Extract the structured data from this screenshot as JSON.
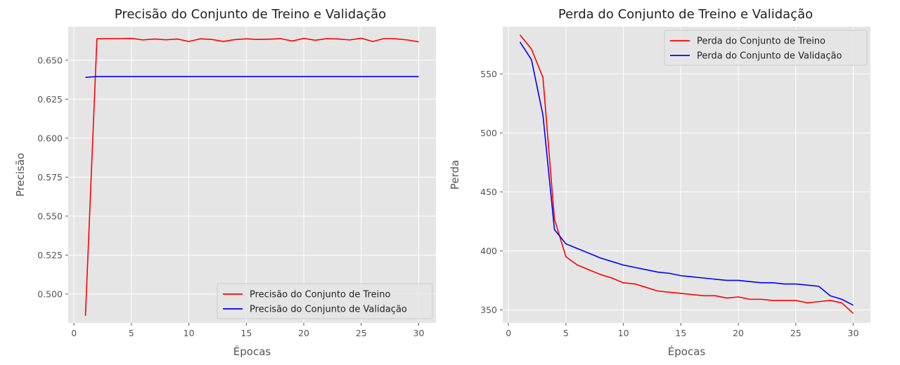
{
  "chart_data": [
    {
      "type": "line",
      "title": "Precisão do Conjunto de Treino e Validação",
      "xlabel": "Épocas",
      "ylabel": "Precisão",
      "xlim": [
        -0.5,
        31.5
      ],
      "ylim": [
        0.4815,
        0.6715
      ],
      "xticks": [
        0,
        5,
        10,
        15,
        20,
        25,
        30
      ],
      "xtick_labels": [
        "0",
        "5",
        "10",
        "15",
        "20",
        "25",
        "30"
      ],
      "yticks": [
        0.5,
        0.525,
        0.55,
        0.575,
        0.6,
        0.625,
        0.65
      ],
      "ytick_labels": [
        "0.500",
        "0.525",
        "0.550",
        "0.575",
        "0.600",
        "0.625",
        "0.650"
      ],
      "grid": true,
      "legend_position": "bottom-right",
      "x": [
        1,
        2,
        3,
        4,
        5,
        6,
        7,
        8,
        9,
        10,
        11,
        12,
        13,
        14,
        15,
        16,
        17,
        18,
        19,
        20,
        21,
        22,
        23,
        24,
        25,
        26,
        27,
        28,
        29,
        30
      ],
      "series": [
        {
          "name": "Precisão do Conjunto de Treino",
          "color": "#ff0000",
          "values": [
            0.486,
            0.6637,
            0.6638,
            0.6639,
            0.664,
            0.663,
            0.6636,
            0.6631,
            0.6636,
            0.662,
            0.6637,
            0.6633,
            0.662,
            0.6632,
            0.6637,
            0.6633,
            0.6635,
            0.6638,
            0.6623,
            0.664,
            0.6628,
            0.6638,
            0.6636,
            0.663,
            0.6641,
            0.662,
            0.6639,
            0.6637,
            0.663,
            0.6618
          ]
        },
        {
          "name": "Precisão do Conjunto de Validação",
          "color": "#0000ff",
          "values": [
            0.639,
            0.6395,
            0.6395,
            0.6395,
            0.6395,
            0.6395,
            0.6395,
            0.6395,
            0.6395,
            0.6395,
            0.6395,
            0.6395,
            0.6395,
            0.6395,
            0.6395,
            0.6395,
            0.6395,
            0.6395,
            0.6395,
            0.6395,
            0.6395,
            0.6395,
            0.6395,
            0.6395,
            0.6395,
            0.6395,
            0.6395,
            0.6395,
            0.6395,
            0.6395
          ]
        }
      ]
    },
    {
      "type": "line",
      "title": "Perda do Conjunto de Treino e Validação",
      "xlabel": "Épocas",
      "ylabel": "Perda",
      "xlim": [
        -0.5,
        31.5
      ],
      "ylim": [
        339,
        590
      ],
      "xticks": [
        0,
        5,
        10,
        15,
        20,
        25,
        30
      ],
      "xtick_labels": [
        "0",
        "5",
        "10",
        "15",
        "20",
        "25",
        "30"
      ],
      "yticks": [
        350,
        400,
        450,
        500,
        550
      ],
      "ytick_labels": [
        "350",
        "400",
        "450",
        "500",
        "550"
      ],
      "grid": true,
      "legend_position": "top-right",
      "x": [
        1,
        2,
        3,
        4,
        5,
        6,
        7,
        8,
        9,
        10,
        11,
        12,
        13,
        14,
        15,
        16,
        17,
        18,
        19,
        20,
        21,
        22,
        23,
        24,
        25,
        26,
        27,
        28,
        29,
        30
      ],
      "series": [
        {
          "name": "Perda do Conjunto de Treino",
          "color": "#ff0000",
          "values": [
            583,
            571,
            547,
            427,
            395,
            388,
            384,
            380,
            377,
            373,
            372,
            369,
            366,
            365,
            364,
            363,
            362,
            362,
            360,
            361,
            359,
            359,
            358,
            358,
            358,
            356,
            357,
            358,
            356,
            347
          ]
        },
        {
          "name": "Perda do Conjunto de Validação",
          "color": "#0000ff",
          "values": [
            577,
            562,
            515,
            418,
            406,
            402,
            398,
            394,
            391,
            388,
            386,
            384,
            382,
            381,
            379,
            378,
            377,
            376,
            375,
            375,
            374,
            373,
            373,
            372,
            372,
            371,
            370,
            362,
            359,
            354
          ]
        }
      ]
    }
  ]
}
